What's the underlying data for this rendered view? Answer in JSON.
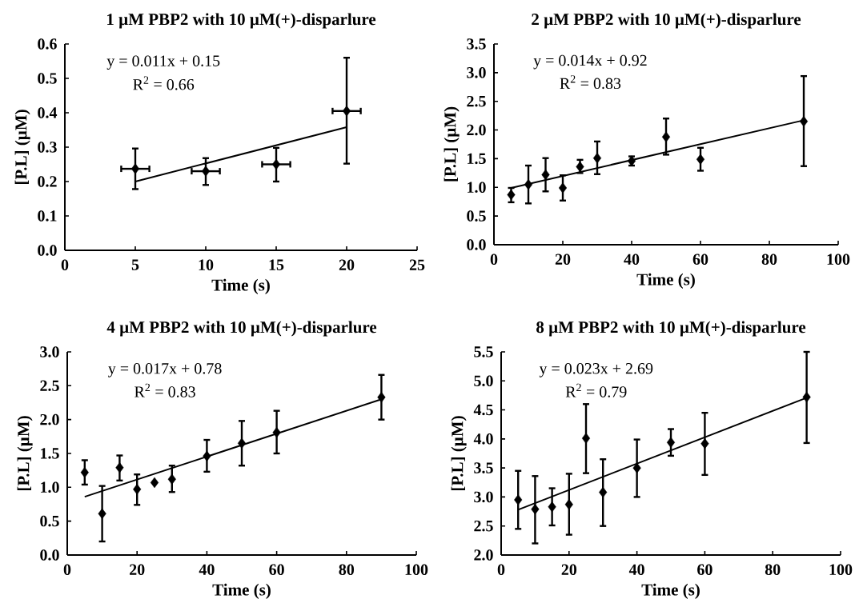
{
  "chart_data": [
    {
      "type": "scatter",
      "title": "1 µM PBP2 with 10 µM(+)-disparlure",
      "xlabel": "Time (s)",
      "ylabel": "[P.L] (µM)",
      "marker": "diamond",
      "xlim": [
        0,
        25
      ],
      "xticks": [
        0,
        5,
        10,
        15,
        20,
        25
      ],
      "ylim": [
        0,
        0.6
      ],
      "yticks": [
        {
          "value": 0,
          "label": "0.0"
        },
        0.1,
        0.2,
        0.3,
        0.4,
        0.5,
        0.6
      ],
      "annotations": [
        "y = 0.011x + 0.15",
        "R$^{2}$ = 0.66"
      ],
      "series": [
        {
          "color": "#000000",
          "x": [
            5,
            10,
            15,
            20
          ],
          "values": [
            0.237,
            0.23,
            0.25,
            0.405
          ],
          "errors": [
            [
              0.178,
              0.296
            ],
            [
              0.19,
              0.268
            ],
            [
              0.2,
              0.298
            ],
            [
              0.252,
              0.56
            ]
          ],
          "xerrors": [
            1,
            1,
            1,
            1
          ]
        },
        {
          "type": "line",
          "color": "#000000",
          "marker": "none",
          "x": [
            5,
            20
          ],
          "values": [
            0.2,
            0.358
          ]
        }
      ]
    },
    {
      "type": "scatter",
      "title": "2 µM PBP2 with 10 µM(+)-disparlure",
      "xlabel": "Time (s)",
      "ylabel": "[P.L] (µM)",
      "marker": "diamond",
      "xlim": [
        0,
        100
      ],
      "xticks": [
        0,
        20,
        40,
        60,
        80,
        100
      ],
      "ylim": [
        0,
        3.5
      ],
      "yticks": [
        {
          "value": 0,
          "label": "0.0"
        },
        0.5,
        {
          "value": 1,
          "label": "1.0"
        },
        1.5,
        {
          "value": 2,
          "label": "2.0"
        },
        2.5,
        {
          "value": 3,
          "label": "3.0"
        },
        3.5
      ],
      "annotations": [
        "y = 0.014x + 0.92",
        "R$^{2}$ = 0.83"
      ],
      "series": [
        {
          "color": "#000000",
          "x": [
            5,
            10,
            15,
            20,
            25,
            30,
            40,
            50,
            60,
            90
          ],
          "values": [
            0.87,
            1.05,
            1.22,
            0.99,
            1.36,
            1.51,
            1.46,
            1.88,
            1.49,
            2.15
          ],
          "errors": [
            [
              0.74,
              0.99
            ],
            [
              0.72,
              1.38
            ],
            [
              0.93,
              1.51
            ],
            [
              0.77,
              1.21
            ],
            [
              1.25,
              1.48
            ],
            [
              1.23,
              1.8
            ],
            [
              1.38,
              1.54
            ],
            [
              1.57,
              2.2
            ],
            [
              1.29,
              1.69
            ],
            [
              1.37,
              2.94
            ]
          ]
        },
        {
          "type": "line",
          "color": "#000000",
          "marker": "none",
          "x": [
            5,
            90
          ],
          "values": [
            0.99,
            2.17
          ]
        }
      ]
    },
    {
      "type": "scatter",
      "title": "4 µM PBP2 with 10 µM(+)-disparlure",
      "xlabel": "Time (s)",
      "ylabel": "[P.L] (µM)",
      "marker": "diamond",
      "xlim": [
        0,
        100
      ],
      "xticks": [
        0,
        20,
        40,
        60,
        80,
        100
      ],
      "ylim": [
        0,
        3
      ],
      "yticks": [
        {
          "value": 0,
          "label": "0.0"
        },
        0.5,
        {
          "value": 1,
          "label": "1.0"
        },
        1.5,
        {
          "value": 2,
          "label": "2.0"
        },
        2.5,
        {
          "value": 3,
          "label": "3.0"
        }
      ],
      "annotations": [
        "y = 0.017x + 0.78",
        "R$^{2}$ = 0.83"
      ],
      "series": [
        {
          "color": "#000000",
          "x": [
            5,
            10,
            15,
            20,
            25,
            30,
            40,
            50,
            60,
            90
          ],
          "values": [
            1.22,
            0.61,
            1.29,
            0.97,
            1.07,
            1.12,
            1.46,
            1.65,
            1.81,
            2.33
          ],
          "errors": [
            [
              1.04,
              1.4
            ],
            [
              0.2,
              1.02
            ],
            [
              1.1,
              1.47
            ],
            [
              0.74,
              1.19
            ],
            null,
            [
              0.93,
              1.32
            ],
            [
              1.23,
              1.7
            ],
            [
              1.32,
              1.98
            ],
            [
              1.5,
              2.13
            ],
            [
              2.0,
              2.66
            ]
          ]
        },
        {
          "type": "line",
          "color": "#000000",
          "marker": "none",
          "x": [
            5,
            90
          ],
          "values": [
            0.86,
            2.3
          ]
        }
      ]
    },
    {
      "type": "scatter",
      "title": "8 µM PBP2 with 10 µM(+)-disparlure",
      "xlabel": "Time (s)",
      "ylabel": "[P.L] (µM)",
      "marker": "diamond",
      "xlim": [
        0,
        100
      ],
      "xticks": [
        0,
        20,
        40,
        60,
        80,
        100
      ],
      "ylim": [
        2,
        5.5
      ],
      "yticks": [
        {
          "value": 2,
          "label": "2.0"
        },
        2.5,
        {
          "value": 3,
          "label": "3.0"
        },
        3.5,
        {
          "value": 4,
          "label": "4.0"
        },
        4.5,
        {
          "value": 5,
          "label": "5.0"
        },
        5.5
      ],
      "annotations": [
        "y = 0.023x + 2.69",
        "R$^{2}$ = 0.79"
      ],
      "series": [
        {
          "color": "#000000",
          "x": [
            5,
            10,
            15,
            20,
            25,
            30,
            40,
            50,
            60,
            90
          ],
          "values": [
            2.95,
            2.79,
            2.83,
            2.87,
            4.01,
            3.08,
            3.5,
            3.94,
            3.92,
            4.72
          ],
          "errors": [
            [
              2.45,
              3.45
            ],
            [
              2.2,
              3.36
            ],
            [
              2.51,
              3.15
            ],
            [
              2.35,
              3.4
            ],
            [
              3.41,
              4.6
            ],
            [
              2.5,
              3.65
            ],
            [
              3.0,
              3.99
            ],
            [
              3.71,
              4.17
            ],
            [
              3.38,
              4.45
            ],
            [
              3.93,
              5.5
            ]
          ]
        },
        {
          "type": "line",
          "color": "#000000",
          "marker": "none",
          "x": [
            5,
            90
          ],
          "values": [
            2.78,
            4.71
          ]
        }
      ]
    }
  ]
}
